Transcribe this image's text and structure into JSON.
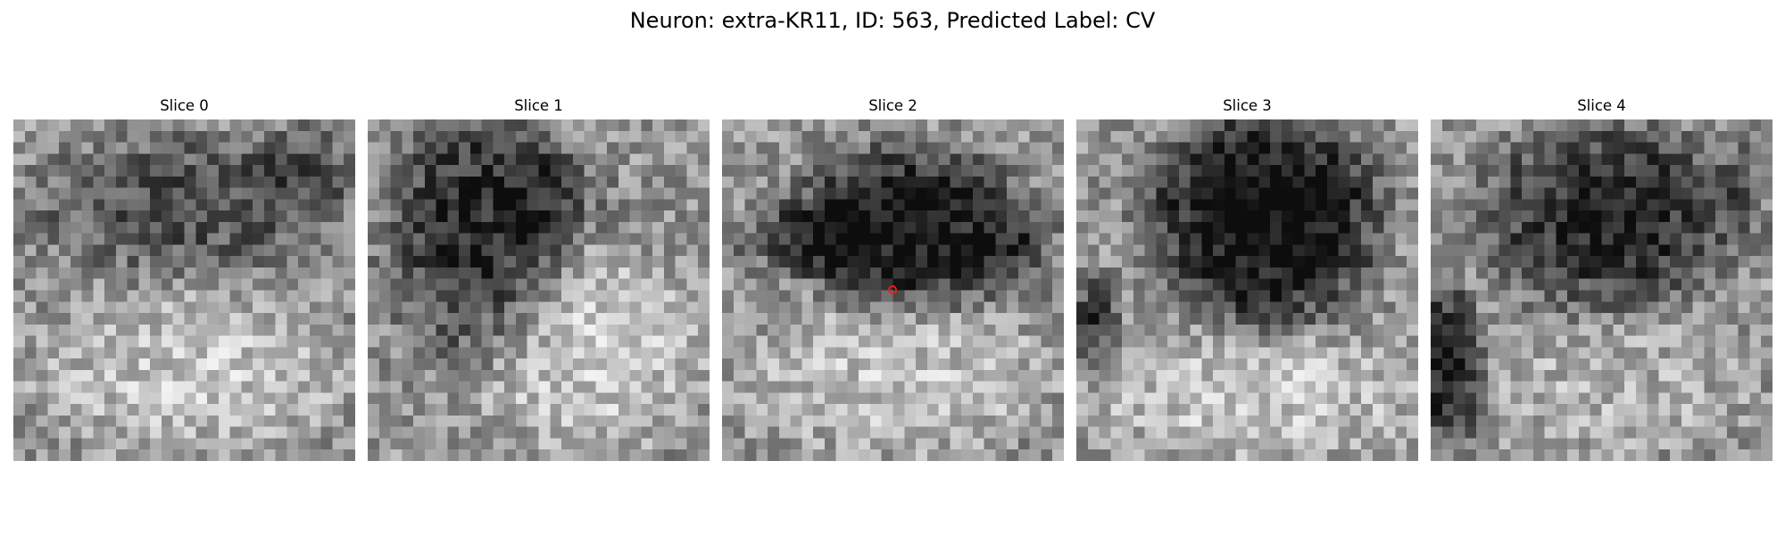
{
  "figure": {
    "title": "Neuron: extra-KR11, ID: 563, Predicted Label: CV",
    "colormap": "gray",
    "grid_size": 30,
    "marker_color": "#e81d1d",
    "marker_slice_index": 2
  },
  "slices": [
    {
      "label": "Slice 0",
      "dark_region": "diffuse upper band"
    },
    {
      "label": "Slice 1",
      "dark_region": "upper-left blob"
    },
    {
      "label": "Slice 2",
      "dark_region": "upper-center blob with marker"
    },
    {
      "label": "Slice 3",
      "dark_region": "large round upper-center blob"
    },
    {
      "label": "Slice 4",
      "dark_region": "upper-center blob with dark left edge"
    }
  ]
}
